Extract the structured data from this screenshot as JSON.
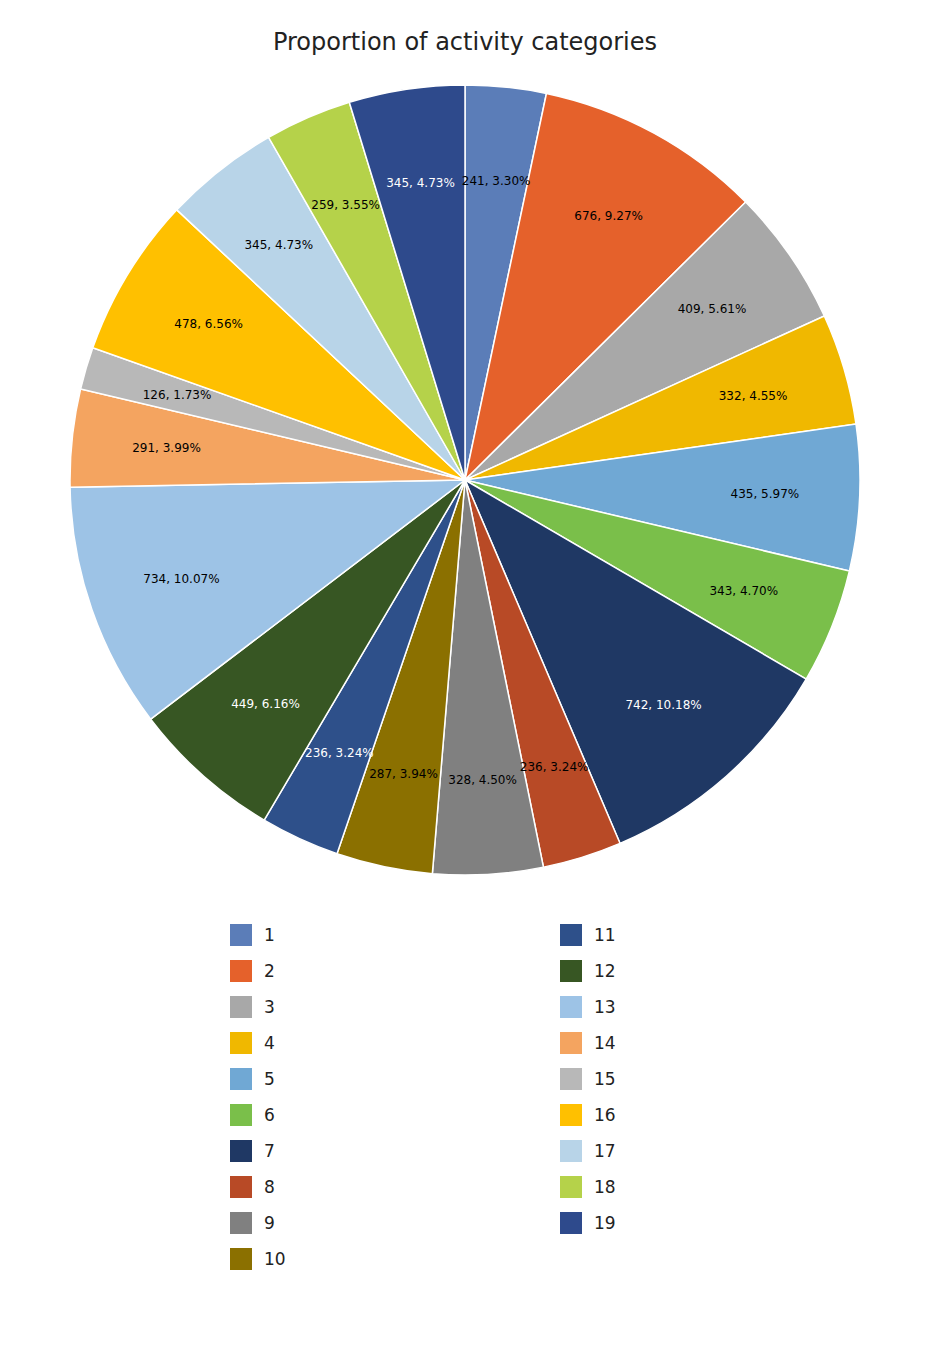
{
  "chart_data": {
    "type": "pie",
    "title": "Proportion of activity categories",
    "categories": [
      "1",
      "2",
      "3",
      "4",
      "5",
      "6",
      "7",
      "8",
      "9",
      "10",
      "11",
      "12",
      "13",
      "14",
      "15",
      "16",
      "17",
      "18",
      "19"
    ],
    "values": [
      241,
      676,
      409,
      332,
      435,
      343,
      742,
      236,
      328,
      287,
      236,
      449,
      734,
      291,
      126,
      478,
      345,
      259,
      345
    ],
    "value_labels": [
      "241, 3.30%",
      "676, 9.27%",
      "409, 5.61%",
      "332, 4.55%",
      "435, 5.97%",
      "343, 4.70%",
      "742, 10.18%",
      "236, 3.24%",
      "328, 4.50%",
      "287, 3.94%",
      "236, 3.24%",
      "449, 6.16%",
      "734, 10.07%",
      "291, 3.99%",
      "126, 1.73%",
      "478, 6.56%",
      "345, 4.73%",
      "259, 3.55%",
      "345, 4.73%"
    ],
    "colors": [
      "#5B7DB8",
      "#E5612B",
      "#A8A8A8",
      "#F0B800",
      "#70A8D4",
      "#7ABF4A",
      "#1F3864",
      "#B84A26",
      "#808080",
      "#8B7000",
      "#2E508A",
      "#375623",
      "#9DC3E6",
      "#F4A460",
      "#B8B8B8",
      "#FFC000",
      "#B8D4E8",
      "#B5D24A",
      "#2E4A8C"
    ],
    "data_labels": true,
    "legend": "bottom"
  }
}
